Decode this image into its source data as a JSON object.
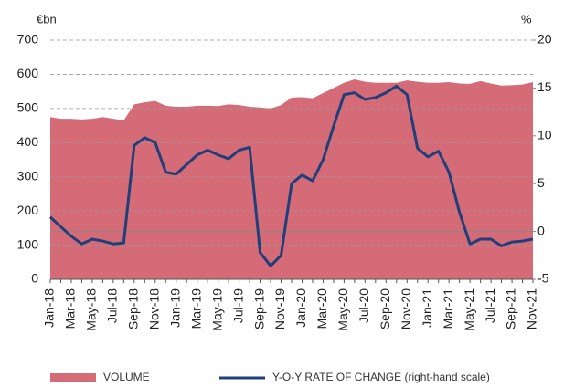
{
  "chart_data": {
    "type": "area_line",
    "y_axis_label": "€bn",
    "y2_axis_label": "%",
    "categories": [
      "Jan-18",
      null,
      "Mar-18",
      null,
      "May-18",
      null,
      "Jul-18",
      null,
      "Sep-18",
      null,
      "Nov-18",
      null,
      "Jan-19",
      null,
      "Mar-19",
      null,
      "May-19",
      null,
      "Jul-19",
      null,
      "Sep-19",
      null,
      "Nov-19",
      null,
      "Jan-20",
      null,
      "Mar-20",
      null,
      "May-20",
      null,
      "Jul-20",
      null,
      "Sep-20",
      null,
      "Nov-20",
      null,
      "Jan-21",
      null,
      "Mar-21",
      null,
      "May-21",
      null,
      "Jul-21",
      null,
      "Sep-21",
      null,
      "Nov-21"
    ],
    "series": [
      {
        "name": "VOLUME",
        "color": "#d66b78",
        "kind": "area",
        "values": [
          475,
          470,
          470,
          468,
          470,
          475,
          470,
          465,
          512,
          518,
          522,
          508,
          505,
          505,
          508,
          508,
          507,
          512,
          510,
          505,
          503,
          500,
          510,
          532,
          533,
          530,
          545,
          560,
          575,
          585,
          578,
          575,
          575,
          575,
          582,
          578,
          575,
          575,
          577,
          573,
          572,
          580,
          573,
          567,
          568,
          570,
          577
        ]
      },
      {
        "name": "Y-O-Y RATE OF CHANGE (right-hand scale)",
        "color": "#1f3f7a",
        "kind": "line",
        "axis": "y2",
        "values": [
          1.5,
          0.5,
          -0.5,
          -1.3,
          -0.8,
          -1.0,
          -1.3,
          -1.2,
          9.0,
          9.8,
          9.3,
          6.2,
          6.0,
          7.0,
          8.0,
          8.5,
          8.0,
          7.6,
          8.5,
          8.8,
          -2.2,
          -3.6,
          -2.5,
          5.0,
          5.9,
          5.3,
          7.5,
          11.0,
          14.3,
          14.5,
          13.8,
          14.0,
          14.5,
          15.2,
          14.3,
          8.7,
          7.8,
          8.4,
          6.2,
          2.0,
          -1.3,
          -0.8,
          -0.8,
          -1.5,
          -1.1,
          -1.0,
          -0.8
        ]
      }
    ],
    "ylim": [
      0,
      700
    ],
    "yticks": [
      0,
      100,
      200,
      300,
      400,
      500,
      600,
      700
    ],
    "y2lim": [
      -5,
      20
    ],
    "y2ticks": [
      -5,
      0,
      5,
      10,
      15,
      20
    ],
    "grid": true,
    "y2_zero_line": true,
    "legend": "bottom"
  }
}
